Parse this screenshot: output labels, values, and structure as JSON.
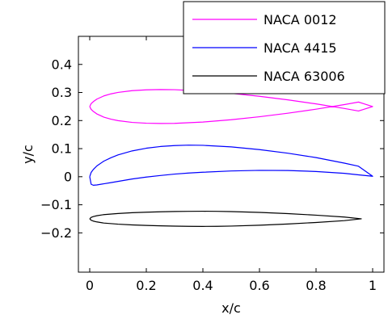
{
  "chart_data": {
    "type": "line",
    "title": "",
    "xlabel": "x/c",
    "ylabel": "y/c",
    "xlim": [
      -0.04,
      1.04
    ],
    "ylim": [
      -0.34,
      0.5
    ],
    "xticks": [
      0,
      0.2,
      0.4,
      0.6,
      0.8,
      1
    ],
    "xtick_labels": [
      "0",
      "0.2",
      "0.4",
      "0.6",
      "0.8",
      "1"
    ],
    "yticks": [
      -0.2,
      -0.1,
      0,
      0.1,
      0.2,
      0.3,
      0.4
    ],
    "ytick_labels": [
      "−0.2",
      "−0.1",
      "0",
      "0.1",
      "0.2",
      "0.3",
      "0.4"
    ],
    "grid": false,
    "legend_position": "top-right",
    "series": [
      {
        "name": "NACA 0012",
        "color": "#ff00ff",
        "x": [
          0,
          0.005,
          0.0125,
          0.025,
          0.05,
          0.075,
          0.1,
          0.15,
          0.2,
          0.25,
          0.3,
          0.4,
          0.5,
          0.6,
          0.7,
          0.8,
          0.9,
          0.95,
          1.0,
          0.95,
          0.9,
          0.8,
          0.7,
          0.6,
          0.5,
          0.4,
          0.3,
          0.25,
          0.2,
          0.15,
          0.1,
          0.075,
          0.05,
          0.025,
          0.0125,
          0.005,
          0
        ],
        "y": [
          0.25,
          0.2602,
          0.2673,
          0.2763,
          0.2878,
          0.2951,
          0.3002,
          0.3065,
          0.3094,
          0.3104,
          0.31,
          0.3052,
          0.2971,
          0.2864,
          0.2738,
          0.2594,
          0.2431,
          0.234,
          0.25,
          0.2659,
          0.2569,
          0.2406,
          0.2262,
          0.2136,
          0.2029,
          0.1948,
          0.19,
          0.1896,
          0.1906,
          0.1935,
          0.1998,
          0.2049,
          0.2122,
          0.2237,
          0.2327,
          0.2398,
          0.25
        ]
      },
      {
        "name": "NACA 4415",
        "color": "#0000ff",
        "x": [
          0,
          0.005,
          0.0125,
          0.025,
          0.05,
          0.075,
          0.1,
          0.15,
          0.2,
          0.25,
          0.3,
          0.35,
          0.4,
          0.5,
          0.6,
          0.7,
          0.8,
          0.9,
          0.95,
          1.0,
          0.95,
          0.9,
          0.8,
          0.7,
          0.6,
          0.5,
          0.4,
          0.35,
          0.3,
          0.25,
          0.2,
          0.15,
          0.1,
          0.075,
          0.05,
          0.025,
          0.0125,
          0.005,
          0
        ],
        "y": [
          0,
          0.0153,
          0.0255,
          0.0383,
          0.0556,
          0.0677,
          0.0776,
          0.0919,
          0.1015,
          0.1076,
          0.111,
          0.1125,
          0.1118,
          0.1062,
          0.0966,
          0.0838,
          0.0681,
          0.0484,
          0.0373,
          0.0016,
          0.0066,
          0.0121,
          0.0186,
          0.0221,
          0.0227,
          0.0205,
          0.0159,
          0.0131,
          0.0093,
          0.0043,
          -0.0012,
          -0.0081,
          -0.0168,
          -0.021,
          -0.0252,
          -0.0293,
          -0.0304,
          -0.0268,
          0
        ]
      },
      {
        "name": "NACA 63006",
        "color": "#000000",
        "x": [
          0,
          0.005,
          0.0125,
          0.025,
          0.05,
          0.1,
          0.15,
          0.2,
          0.25,
          0.3,
          0.35,
          0.4,
          0.45,
          0.5,
          0.6,
          0.7,
          0.8,
          0.9,
          0.96,
          0.9,
          0.8,
          0.7,
          0.6,
          0.5,
          0.45,
          0.4,
          0.35,
          0.3,
          0.25,
          0.2,
          0.15,
          0.1,
          0.05,
          0.025,
          0.0125,
          0.005,
          0
        ],
        "y": [
          -0.15,
          -0.145,
          -0.142,
          -0.139,
          -0.135,
          -0.131,
          -0.1283,
          -0.1264,
          -0.125,
          -0.124,
          -0.1233,
          -0.123,
          -0.1233,
          -0.1242,
          -0.1272,
          -0.1315,
          -0.137,
          -0.1436,
          -0.15,
          -0.1564,
          -0.163,
          -0.1685,
          -0.1728,
          -0.1758,
          -0.1767,
          -0.177,
          -0.1767,
          -0.176,
          -0.175,
          -0.1736,
          -0.1717,
          -0.169,
          -0.165,
          -0.161,
          -0.158,
          -0.155,
          -0.15
        ]
      }
    ]
  }
}
